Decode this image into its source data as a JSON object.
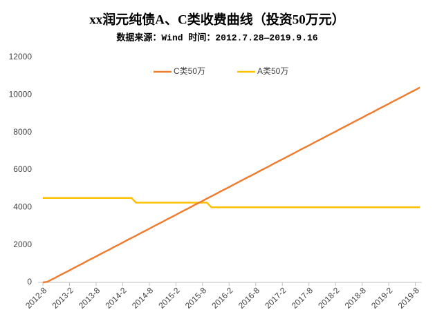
{
  "chart_data": {
    "type": "line",
    "title": "xx润元纯债A、C类收费曲线（投资50万元）",
    "subtitle": "数据来源：Wind 时间：2012.7.28—2019.9.16",
    "categories": [
      "2012-8",
      null,
      null,
      null,
      null,
      null,
      "2013-2",
      null,
      null,
      null,
      null,
      null,
      "2013-8",
      null,
      null,
      null,
      null,
      null,
      "2014-2",
      null,
      null,
      null,
      null,
      null,
      "2014-8",
      null,
      null,
      null,
      null,
      null,
      "2015-2",
      null,
      null,
      null,
      null,
      null,
      "2015-8",
      null,
      null,
      null,
      null,
      null,
      "2016-2",
      null,
      null,
      null,
      null,
      null,
      "2016-8",
      null,
      null,
      null,
      null,
      null,
      "2017-2",
      null,
      null,
      null,
      null,
      null,
      "2017-8",
      null,
      null,
      null,
      null,
      null,
      "2018-2",
      null,
      null,
      null,
      null,
      null,
      "2018-8",
      null,
      null,
      null,
      null,
      null,
      "2019-2",
      null,
      null,
      null,
      null,
      null,
      "2019-8",
      null
    ],
    "series": [
      {
        "name": "C类50万",
        "color": "#ed7d31",
        "values": [
          0,
          30,
          150,
          270,
          400,
          520,
          640,
          770,
          890,
          1010,
          1140,
          1260,
          1380,
          1510,
          1630,
          1750,
          1880,
          2000,
          2120,
          2250,
          2370,
          2490,
          2620,
          2740,
          2860,
          2990,
          3110,
          3230,
          3360,
          3480,
          3600,
          3730,
          3850,
          3970,
          4100,
          4220,
          4340,
          4470,
          4590,
          4710,
          4840,
          4960,
          5080,
          5210,
          5330,
          5450,
          5580,
          5700,
          5820,
          5950,
          6070,
          6190,
          6320,
          6440,
          6560,
          6690,
          6810,
          6930,
          7060,
          7180,
          7300,
          7430,
          7550,
          7670,
          7800,
          7920,
          8040,
          8170,
          8290,
          8410,
          8540,
          8660,
          8780,
          8910,
          9030,
          9150,
          9280,
          9400,
          9520,
          9650,
          9770,
          9890,
          10020,
          10140,
          10260,
          10390
        ]
      },
      {
        "name": "A类50万",
        "color": "#ffc000",
        "values": [
          4500,
          4500,
          4500,
          4500,
          4500,
          4500,
          4500,
          4500,
          4500,
          4500,
          4500,
          4500,
          4500,
          4500,
          4500,
          4500,
          4500,
          4500,
          4500,
          4500,
          4500,
          4250,
          4250,
          4250,
          4250,
          4250,
          4250,
          4250,
          4250,
          4250,
          4250,
          4250,
          4250,
          4250,
          4250,
          4250,
          4250,
          4250,
          4000,
          4000,
          4000,
          4000,
          4000,
          4000,
          4000,
          4000,
          4000,
          4000,
          4000,
          4000,
          4000,
          4000,
          4000,
          4000,
          4000,
          4000,
          4000,
          4000,
          4000,
          4000,
          4000,
          4000,
          4000,
          4000,
          4000,
          4000,
          4000,
          4000,
          4000,
          4000,
          4000,
          4000,
          4000,
          4000,
          4000,
          4000,
          4000,
          4000,
          4000,
          4000,
          4000,
          4000,
          4000,
          4000,
          4000,
          4000
        ]
      }
    ],
    "ylim": [
      0,
      12000
    ],
    "yticks": [
      0,
      2000,
      4000,
      6000,
      8000,
      10000,
      12000
    ],
    "grid": false,
    "legend": "top"
  }
}
